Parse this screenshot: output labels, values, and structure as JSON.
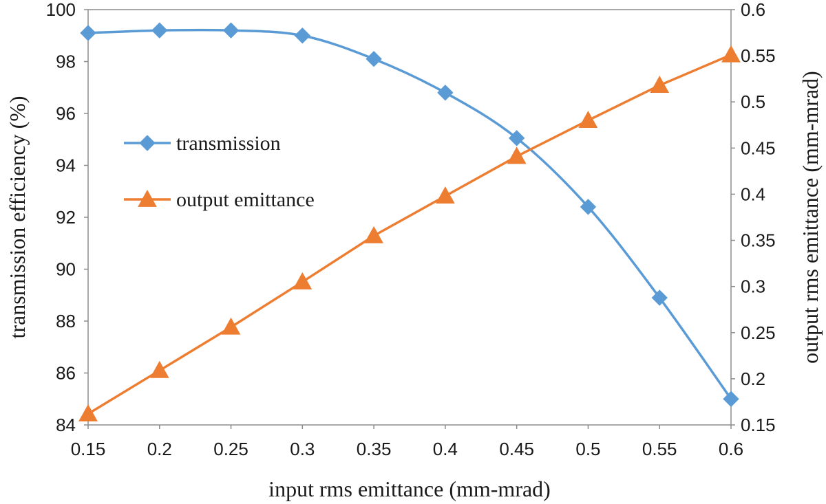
{
  "chart_data": {
    "type": "line",
    "title": "",
    "xlabel": "input rms emittance (mm-mrad)",
    "ylabel": "transmission efficiency (%)",
    "y2label": "output rms emittance (mm-mrad)",
    "x": [
      0.15,
      0.2,
      0.25,
      0.3,
      0.35,
      0.4,
      0.45,
      0.5,
      0.55,
      0.6
    ],
    "xticks": [
      "0.15",
      "0.2",
      "0.25",
      "0.3",
      "0.35",
      "0.4",
      "0.45",
      "0.5",
      "0.55",
      "0.6"
    ],
    "xlim": [
      0.15,
      0.6
    ],
    "ylim": [
      84,
      100
    ],
    "yticks": [
      "84",
      "86",
      "88",
      "90",
      "92",
      "94",
      "96",
      "98",
      "100"
    ],
    "y2lim": [
      0.15,
      0.6
    ],
    "y2ticks": [
      "0.15",
      "0.2",
      "0.25",
      "0.3",
      "0.35",
      "0.4",
      "0.45",
      "0.5",
      "0.55",
      "0.6"
    ],
    "grid": false,
    "legend_position": "left-middle",
    "series": [
      {
        "name": "transmission",
        "axis": "left",
        "marker": "diamond",
        "color": "#5b9bd5",
        "smooth": true,
        "values": [
          99.1,
          99.2,
          99.2,
          99.0,
          98.1,
          96.8,
          95.05,
          92.4,
          88.9,
          85.0
        ]
      },
      {
        "name": "output emittance",
        "axis": "right",
        "marker": "triangle",
        "color": "#ed7d31",
        "smooth": false,
        "values": [
          0.162,
          0.209,
          0.256,
          0.305,
          0.355,
          0.398,
          0.441,
          0.48,
          0.518,
          0.551
        ]
      }
    ]
  }
}
